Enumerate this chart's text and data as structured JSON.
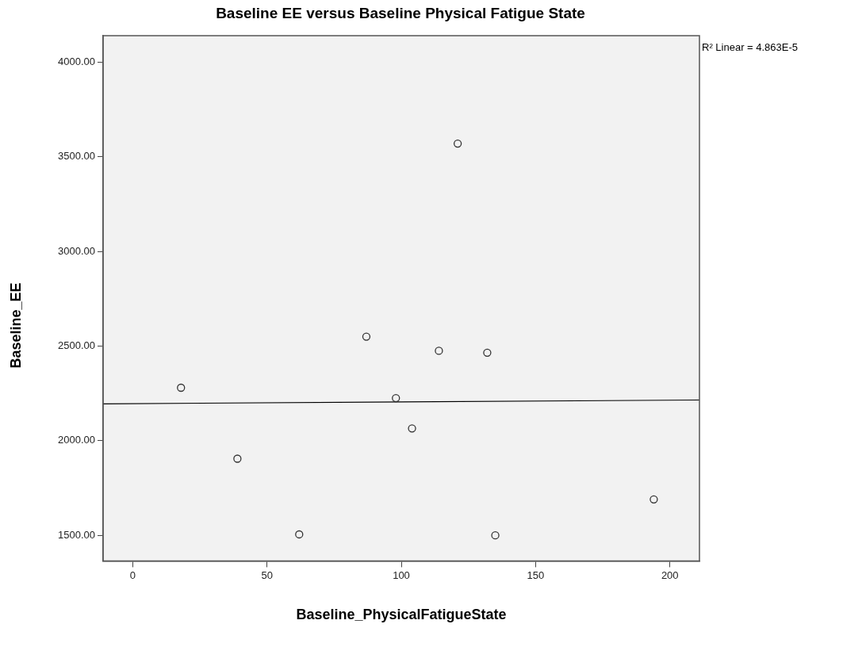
{
  "chart_data": {
    "type": "scatter",
    "title": "Baseline EE versus Baseline Physical Fatigue State",
    "xlabel": "Baseline_PhysicalFatigueState",
    "ylabel": "Baseline_EE",
    "annotations": [
      "R² Linear = 4.863E-5"
    ],
    "xlim": [
      -11,
      211
    ],
    "xticks": [
      0,
      50,
      100,
      150,
      200
    ],
    "ylim": [
      1365,
      4140
    ],
    "yticks": [
      {
        "value": 1500,
        "label": "1500.00"
      },
      {
        "value": 2000,
        "label": "2000.00"
      },
      {
        "value": 2500,
        "label": "2500.00"
      },
      {
        "value": 3000,
        "label": "3000.00"
      },
      {
        "value": 3500,
        "label": "3500.00"
      },
      {
        "value": 4000,
        "label": "4000.00"
      }
    ],
    "grid": false,
    "legend": false,
    "marker": "circle",
    "series": [
      {
        "color": "#333333",
        "x": [
          18,
          39,
          62,
          87,
          98,
          104,
          114,
          121,
          132,
          135,
          194
        ],
        "values": [
          2280,
          1905,
          1505,
          2550,
          2225,
          2065,
          2475,
          3570,
          2465,
          1500,
          1690
        ]
      },
      {
        "type": "line",
        "color": "#000000",
        "x": [
          -11,
          211
        ],
        "values": [
          2195,
          2215
        ],
        "marker": "none"
      }
    ]
  }
}
